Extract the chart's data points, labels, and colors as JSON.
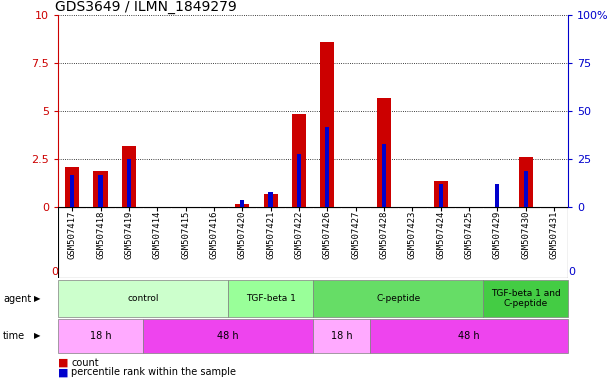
{
  "title": "GDS3649 / ILMN_1849279",
  "samples": [
    "GSM507417",
    "GSM507418",
    "GSM507419",
    "GSM507414",
    "GSM507415",
    "GSM507416",
    "GSM507420",
    "GSM507421",
    "GSM507422",
    "GSM507426",
    "GSM507427",
    "GSM507428",
    "GSM507423",
    "GSM507424",
    "GSM507425",
    "GSM507429",
    "GSM507430",
    "GSM507431"
  ],
  "count_values": [
    2.1,
    1.9,
    3.2,
    0.0,
    0.0,
    0.0,
    0.15,
    0.7,
    4.85,
    8.6,
    0.0,
    5.7,
    0.0,
    1.35,
    0.0,
    0.0,
    2.6,
    0.0
  ],
  "percentile_values": [
    17,
    17,
    25,
    0,
    0,
    0,
    4,
    8,
    28,
    42,
    0,
    33,
    0,
    12,
    0,
    12,
    19,
    0
  ],
  "count_color": "#cc0000",
  "percentile_color": "#0000cc",
  "ylim_left": [
    0,
    10
  ],
  "ylim_right": [
    0,
    100
  ],
  "yticks_left": [
    0,
    2.5,
    5.0,
    7.5,
    10
  ],
  "yticks_right": [
    0,
    25,
    50,
    75,
    100
  ],
  "ytick_labels_left": [
    "0",
    "2.5",
    "5",
    "7.5",
    "10"
  ],
  "ytick_labels_right": [
    "0",
    "25",
    "50",
    "75",
    "100%"
  ],
  "agent_groups": [
    {
      "label": "control",
      "start": 0,
      "end": 6,
      "color": "#ccffcc"
    },
    {
      "label": "TGF-beta 1",
      "start": 6,
      "end": 9,
      "color": "#99ff99"
    },
    {
      "label": "C-peptide",
      "start": 9,
      "end": 15,
      "color": "#66dd66"
    },
    {
      "label": "TGF-beta 1 and\nC-peptide",
      "start": 15,
      "end": 18,
      "color": "#44cc44"
    }
  ],
  "time_groups": [
    {
      "label": "18 h",
      "start": 0,
      "end": 3,
      "color": "#ffaaff"
    },
    {
      "label": "48 h",
      "start": 3,
      "end": 9,
      "color": "#ee44ee"
    },
    {
      "label": "18 h",
      "start": 9,
      "end": 11,
      "color": "#ffaaff"
    },
    {
      "label": "48 h",
      "start": 11,
      "end": 18,
      "color": "#ee44ee"
    }
  ],
  "xlabel_bg": "#d0d0d0",
  "background_color": "#ffffff",
  "plot_bg": "#ffffff"
}
